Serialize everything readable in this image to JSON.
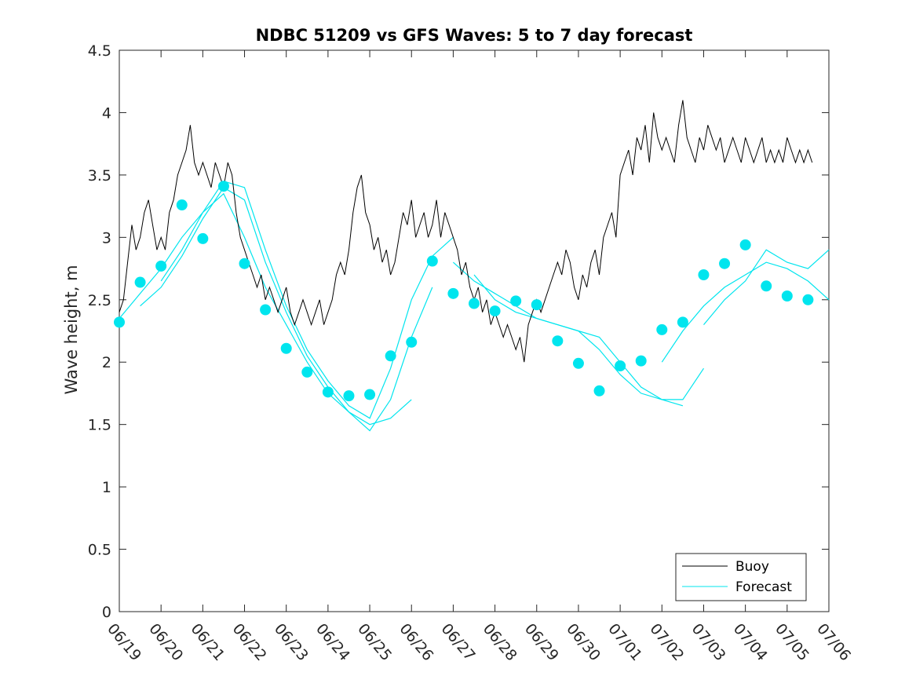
{
  "chart_data": {
    "type": "line",
    "title": "NDBC 51209 vs GFS Waves: 5 to 7 day forecast",
    "ylabel": "Wave height, m",
    "xlabel": "",
    "ylim": [
      0,
      4.5
    ],
    "xlim": [
      "06/19",
      "07/06"
    ],
    "x_ticks": [
      "06/19",
      "06/20",
      "06/21",
      "06/22",
      "06/23",
      "06/24",
      "06/25",
      "06/26",
      "06/27",
      "06/28",
      "06/29",
      "06/30",
      "07/01",
      "07/02",
      "07/03",
      "07/04",
      "07/05",
      "07/06"
    ],
    "y_ticks": [
      "0",
      "0.5",
      "1",
      "1.5",
      "2",
      "2.5",
      "3",
      "3.5",
      "4",
      "4.5"
    ],
    "grid": false,
    "legend_position": "bottom-right",
    "colors": {
      "buoy": "#000000",
      "forecast": "#00e5ee",
      "axis": "#262626"
    },
    "series": [
      {
        "name": "Buoy",
        "style": "line",
        "x_day_offset": [
          0.0,
          0.1,
          0.2,
          0.3,
          0.4,
          0.5,
          0.6,
          0.7,
          0.8,
          0.9,
          1.0,
          1.1,
          1.2,
          1.3,
          1.4,
          1.5,
          1.6,
          1.7,
          1.8,
          1.9,
          2.0,
          2.1,
          2.2,
          2.3,
          2.4,
          2.5,
          2.6,
          2.7,
          2.8,
          2.9,
          3.0,
          3.1,
          3.2,
          3.3,
          3.4,
          3.5,
          3.6,
          3.7,
          3.8,
          3.9,
          4.0,
          4.1,
          4.2,
          4.3,
          4.4,
          4.5,
          4.6,
          4.7,
          4.8,
          4.9,
          5.0,
          5.1,
          5.2,
          5.3,
          5.4,
          5.5,
          5.6,
          5.7,
          5.8,
          5.9,
          6.0,
          6.1,
          6.2,
          6.3,
          6.4,
          6.5,
          6.6,
          6.7,
          6.8,
          6.9,
          7.0,
          7.1,
          7.2,
          7.3,
          7.4,
          7.5,
          7.6,
          7.7,
          7.8,
          7.9,
          8.0,
          8.1,
          8.2,
          8.3,
          8.4,
          8.5,
          8.6,
          8.7,
          8.8,
          8.9,
          9.0,
          9.1,
          9.2,
          9.3,
          9.4,
          9.5,
          9.6,
          9.7,
          9.8,
          9.9,
          10.0,
          10.1,
          10.2,
          10.3,
          10.4,
          10.5,
          10.6,
          10.7,
          10.8,
          10.9,
          11.0,
          11.1,
          11.2,
          11.3,
          11.4,
          11.5,
          11.6,
          11.7,
          11.8,
          11.9,
          12.0,
          12.1,
          12.2,
          12.3,
          12.4,
          12.5,
          12.6,
          12.7,
          12.8,
          12.9,
          13.0,
          13.1,
          13.2,
          13.3,
          13.4,
          13.5,
          13.6,
          13.7,
          13.8,
          13.9,
          14.0,
          14.1,
          14.2,
          14.3,
          14.4,
          14.5,
          14.6,
          14.7,
          14.8,
          14.9,
          15.0,
          15.1,
          15.2,
          15.3,
          15.4,
          15.5,
          15.6,
          15.7,
          15.8,
          15.9,
          16.0,
          16.1,
          16.2,
          16.3,
          16.4,
          16.5,
          16.6,
          16.7,
          16.8,
          16.9
        ],
        "values": [
          2.4,
          2.5,
          2.8,
          3.1,
          2.9,
          3.0,
          3.2,
          3.3,
          3.1,
          2.9,
          3.0,
          2.9,
          3.2,
          3.3,
          3.5,
          3.6,
          3.7,
          3.9,
          3.6,
          3.5,
          3.6,
          3.5,
          3.4,
          3.6,
          3.5,
          3.4,
          3.6,
          3.5,
          3.2,
          3.0,
          2.9,
          2.8,
          2.7,
          2.6,
          2.7,
          2.5,
          2.6,
          2.5,
          2.4,
          2.5,
          2.6,
          2.4,
          2.3,
          2.4,
          2.5,
          2.4,
          2.3,
          2.4,
          2.5,
          2.3,
          2.4,
          2.5,
          2.7,
          2.8,
          2.7,
          2.9,
          3.2,
          3.4,
          3.5,
          3.2,
          3.1,
          2.9,
          3.0,
          2.8,
          2.9,
          2.7,
          2.8,
          3.0,
          3.2,
          3.1,
          3.3,
          3.0,
          3.1,
          3.2,
          3.0,
          3.1,
          3.3,
          3.0,
          3.2,
          3.1,
          3.0,
          2.9,
          2.7,
          2.8,
          2.6,
          2.5,
          2.6,
          2.4,
          2.5,
          2.3,
          2.4,
          2.3,
          2.2,
          2.3,
          2.2,
          2.1,
          2.2,
          2.0,
          2.3,
          2.4,
          2.5,
          2.4,
          2.5,
          2.6,
          2.7,
          2.8,
          2.7,
          2.9,
          2.8,
          2.6,
          2.5,
          2.7,
          2.6,
          2.8,
          2.9,
          2.7,
          3.0,
          3.1,
          3.2,
          3.0,
          3.5,
          3.6,
          3.7,
          3.5,
          3.8,
          3.7,
          3.9,
          3.6,
          4.0,
          3.8,
          3.7,
          3.8,
          3.7,
          3.6,
          3.9,
          4.1,
          3.8,
          3.7,
          3.6,
          3.8,
          3.7,
          3.9,
          3.8,
          3.7,
          3.8,
          3.6,
          3.7,
          3.8,
          3.7,
          3.6,
          3.8,
          3.7,
          3.6,
          3.7,
          3.8,
          3.6,
          3.7,
          3.6,
          3.7,
          3.6,
          3.8,
          3.7,
          3.6,
          3.7,
          3.6,
          3.7,
          3.6
        ]
      },
      {
        "name": "Forecast",
        "style": "lines",
        "runs": [
          {
            "x_day_offset": [
              0.0,
              0.5,
              1.0,
              1.5,
              2.0,
              2.5,
              3.0,
              3.5,
              4.0,
              4.5,
              5.0,
              5.5,
              6.0,
              6.5,
              7.0
            ],
            "values": [
              2.35,
              2.55,
              2.75,
              3.0,
              3.2,
              3.35,
              3.0,
              2.6,
              2.3,
              2.0,
              1.75,
              1.6,
              1.5,
              1.55,
              1.7
            ]
          },
          {
            "x_day_offset": [
              0.5,
              1.0,
              1.5,
              2.0,
              2.5,
              3.0,
              3.5,
              4.0,
              4.5,
              5.0,
              5.5,
              6.0,
              6.5,
              7.0,
              7.5
            ],
            "values": [
              2.45,
              2.6,
              2.85,
              3.15,
              3.4,
              3.3,
              2.8,
              2.4,
              2.05,
              1.8,
              1.6,
              1.45,
              1.7,
              2.2,
              2.6
            ]
          },
          {
            "x_day_offset": [
              1.0,
              1.5,
              2.0,
              2.5,
              3.0,
              3.5,
              4.0,
              4.5,
              5.0,
              5.5,
              6.0,
              6.5,
              7.0,
              7.5,
              8.0
            ],
            "values": [
              2.65,
              2.9,
              3.2,
              3.45,
              3.4,
              2.9,
              2.45,
              2.1,
              1.85,
              1.65,
              1.55,
              1.95,
              2.5,
              2.85,
              3.0
            ]
          },
          {
            "x_day_offset": [
              8.0,
              8.5,
              9.0,
              9.5,
              10.0,
              10.5,
              11.0,
              11.5,
              12.0,
              12.5,
              13.0,
              13.5
            ],
            "values": [
              2.8,
              2.65,
              2.55,
              2.45,
              2.35,
              2.3,
              2.25,
              2.1,
              1.9,
              1.75,
              1.7,
              1.65
            ]
          },
          {
            "x_day_offset": [
              8.5,
              9.0,
              9.5,
              10.0,
              10.5,
              11.0,
              11.5,
              12.0,
              12.5,
              13.0,
              13.5,
              14.0
            ],
            "values": [
              2.7,
              2.5,
              2.4,
              2.35,
              2.3,
              2.25,
              2.2,
              2.0,
              1.8,
              1.7,
              1.7,
              1.95
            ]
          },
          {
            "x_day_offset": [
              13.0,
              13.5,
              14.0,
              14.5,
              15.0,
              15.5,
              16.0,
              16.5,
              17.0
            ],
            "values": [
              2.0,
              2.25,
              2.45,
              2.6,
              2.7,
              2.8,
              2.75,
              2.65,
              2.5
            ]
          },
          {
            "x_day_offset": [
              14.0,
              14.5,
              15.0,
              15.5,
              16.0,
              16.5,
              17.0
            ],
            "values": [
              2.3,
              2.5,
              2.65,
              2.9,
              2.8,
              2.75,
              2.9
            ]
          }
        ]
      }
    ],
    "forecast_points": {
      "x_day_offset": [
        0.0,
        0.5,
        1.0,
        1.5,
        2.0,
        2.5,
        3.0,
        3.5,
        4.0,
        4.5,
        5.0,
        5.5,
        6.0,
        6.5,
        7.0,
        7.5,
        8.0,
        8.5,
        9.0,
        9.5,
        10.0,
        10.5,
        11.0,
        11.5,
        12.0,
        12.5,
        13.0,
        13.5,
        14.0,
        14.5,
        15.0,
        15.5,
        16.0,
        16.5
      ],
      "values": [
        2.32,
        2.64,
        2.77,
        3.26,
        2.99,
        3.41,
        2.79,
        2.42,
        2.11,
        1.92,
        1.76,
        1.73,
        1.74,
        2.05,
        2.16,
        2.81,
        2.55,
        2.47,
        2.41,
        2.49,
        2.46,
        2.17,
        1.99,
        1.77,
        1.97,
        2.01,
        2.26,
        2.32,
        2.7,
        2.79,
        2.94,
        2.61,
        2.53,
        2.5
      ]
    }
  },
  "legend": {
    "entries": [
      "Buoy",
      "Forecast"
    ]
  }
}
